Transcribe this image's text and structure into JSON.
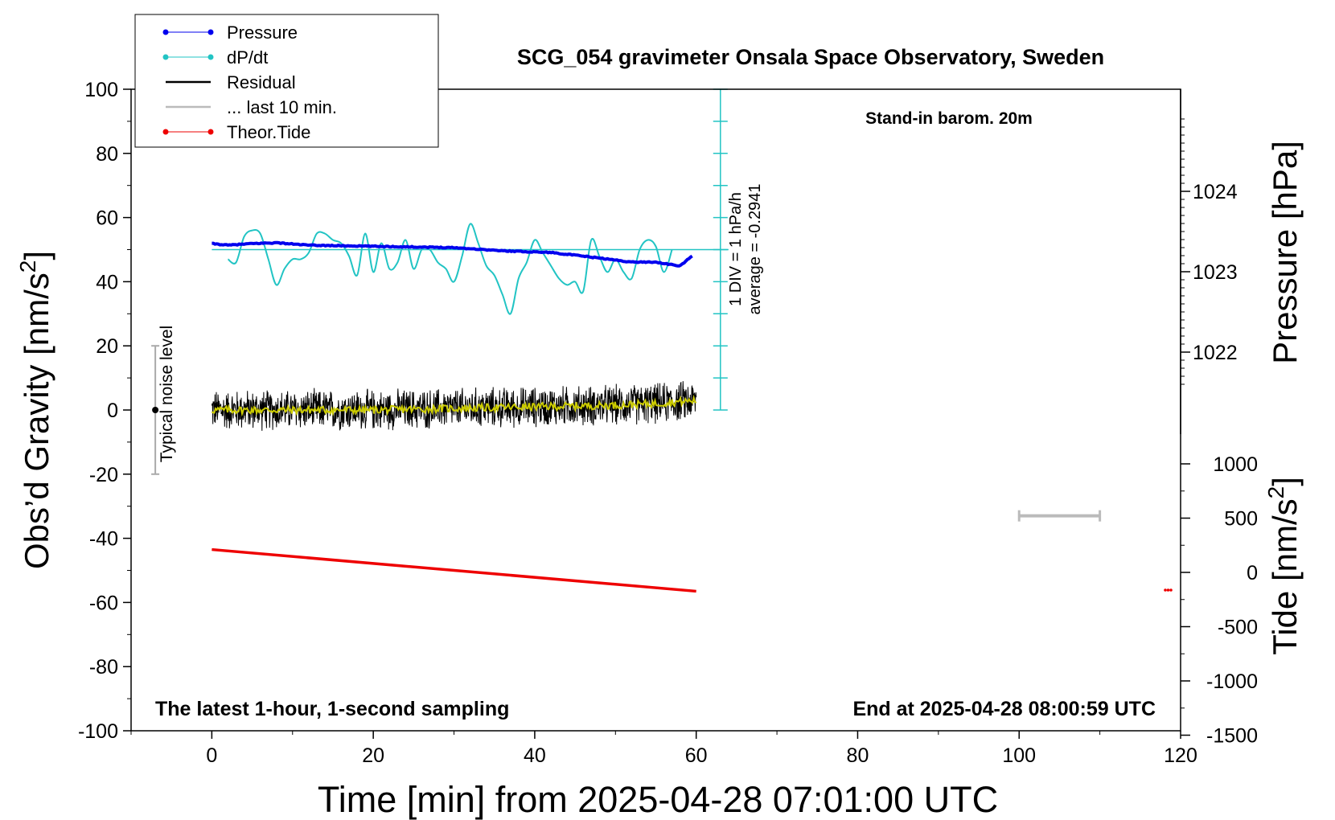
{
  "chart_data": {
    "type": "line",
    "title": "SCG_054 gravimeter Onsala Space Observatory, Sweden",
    "xlabel": "Time [min] from 2025-04-28 07:01:00 UTC",
    "ylabel": "Obs’d Gravity [nm/s2]",
    "ylabel_main": "Obs’d Gravity [nm/s",
    "ylabel_sup": "2",
    "ylabel_tail": "]",
    "y2label": "Pressure [hPa]",
    "y3label_main": "Tide [nm/s",
    "y3label_sup": "2",
    "y3label_tail": "]",
    "xlim": [
      -10,
      120
    ],
    "ylim": [
      -100,
      100
    ],
    "pressure_lim": [
      1021,
      1025
    ],
    "tide_lim": [
      -1500,
      1000
    ],
    "x_ticks": [
      0,
      20,
      40,
      60,
      80,
      100,
      120
    ],
    "y_ticks": [
      100,
      80,
      60,
      40,
      20,
      0,
      -20,
      -40,
      -60,
      -80,
      -100
    ],
    "pressure_ticks": [
      1024,
      1023,
      1022
    ],
    "tide_ticks": [
      1000,
      500,
      0,
      -500,
      -1000,
      -1500
    ],
    "annotations": {
      "barometer": "Stand-in barom. 20m",
      "sampling": "The latest 1-hour, 1-second sampling",
      "end_time": "End at 2025-04-28 08:00:59 UTC",
      "noise": "Typical noise level",
      "dpdt_div": "1 DIV = 1 hPa/h",
      "dpdt_avg": "average = -0.2941"
    },
    "legend": [
      {
        "name": "Pressure",
        "color": "#0000ee",
        "marker": true
      },
      {
        "name": "dP/dt",
        "color": "#22c4c4",
        "marker": true
      },
      {
        "name": "Residual",
        "color": "#000000",
        "marker": false
      },
      {
        "name": "... last 10 min.",
        "color": "#bbbbbb",
        "marker": false
      },
      {
        "name": "Theor.Tide",
        "color": "#ee0000",
        "marker": true
      }
    ],
    "legend_placement": "top-left",
    "colors": {
      "pressure": "#0000ee",
      "dpdt": "#22c4c4",
      "residual": "#000000",
      "smooth": "#cccc00",
      "tide": "#ee0000",
      "last10": "#bbbbbb",
      "noise": "#aaaaaa"
    },
    "series": [
      {
        "name": "Pressure",
        "unit": "hPa",
        "x": [
          0,
          2,
          5,
          8,
          12,
          18,
          24,
          30,
          36,
          42,
          48,
          52,
          55,
          58,
          59.5
        ],
        "y": [
          1023.35,
          1023.33,
          1023.35,
          1023.36,
          1023.33,
          1023.32,
          1023.31,
          1023.3,
          1023.26,
          1023.24,
          1023.17,
          1023.12,
          1023.12,
          1023.07,
          1023.2
        ]
      },
      {
        "name": "dP/dt",
        "unit": "gravity axis",
        "x": [
          2,
          3,
          4,
          5,
          6,
          7,
          8,
          9,
          10,
          11,
          12,
          13,
          14,
          15,
          16,
          17,
          18,
          19,
          20,
          21,
          22,
          23,
          24,
          25,
          26,
          27,
          28,
          29,
          30,
          31,
          32,
          33,
          34,
          35,
          36,
          37,
          38,
          39,
          40,
          41,
          42,
          43,
          44,
          45,
          46,
          47,
          48,
          49,
          50,
          51,
          52,
          53,
          54,
          55,
          56,
          57
        ],
        "y": [
          47,
          46,
          54,
          56,
          55,
          47,
          39,
          44,
          47,
          47,
          49,
          55,
          55,
          53,
          52,
          48,
          42,
          55,
          43,
          52,
          44,
          46,
          53,
          44,
          50,
          50,
          46,
          44,
          40,
          48,
          58,
          52,
          45,
          42,
          36,
          30,
          41,
          46,
          53,
          49,
          45,
          41,
          39,
          40,
          37,
          53,
          48,
          43,
          47,
          43,
          41,
          50,
          53,
          51,
          43,
          50
        ]
      },
      {
        "name": "Residual",
        "unit": "nm/s2",
        "x_start": 0,
        "x_end": 60,
        "noise_amplitude": 5.5
      },
      {
        "name": "Residual (smoothed)",
        "unit": "nm/s2",
        "x": [
          0,
          10,
          20,
          30,
          40,
          50,
          55,
          60
        ],
        "y": [
          0,
          0,
          0,
          0.5,
          1,
          1.5,
          2,
          3
        ]
      },
      {
        "name": "Theor.Tide",
        "unit": "gravity axis",
        "x": [
          0,
          60
        ],
        "y": [
          -43.5,
          -56.5
        ]
      },
      {
        "name": "... last 10 min.",
        "unit": "min",
        "x": [
          100,
          110
        ],
        "y": [
          -33,
          -33
        ]
      }
    ],
    "noise_bar": {
      "x": -7,
      "y_center": 0,
      "y_range": [
        -20,
        20
      ]
    },
    "dpdt_scale": {
      "x": 63,
      "y_range": [
        0,
        100
      ],
      "ref_y": 50
    }
  }
}
